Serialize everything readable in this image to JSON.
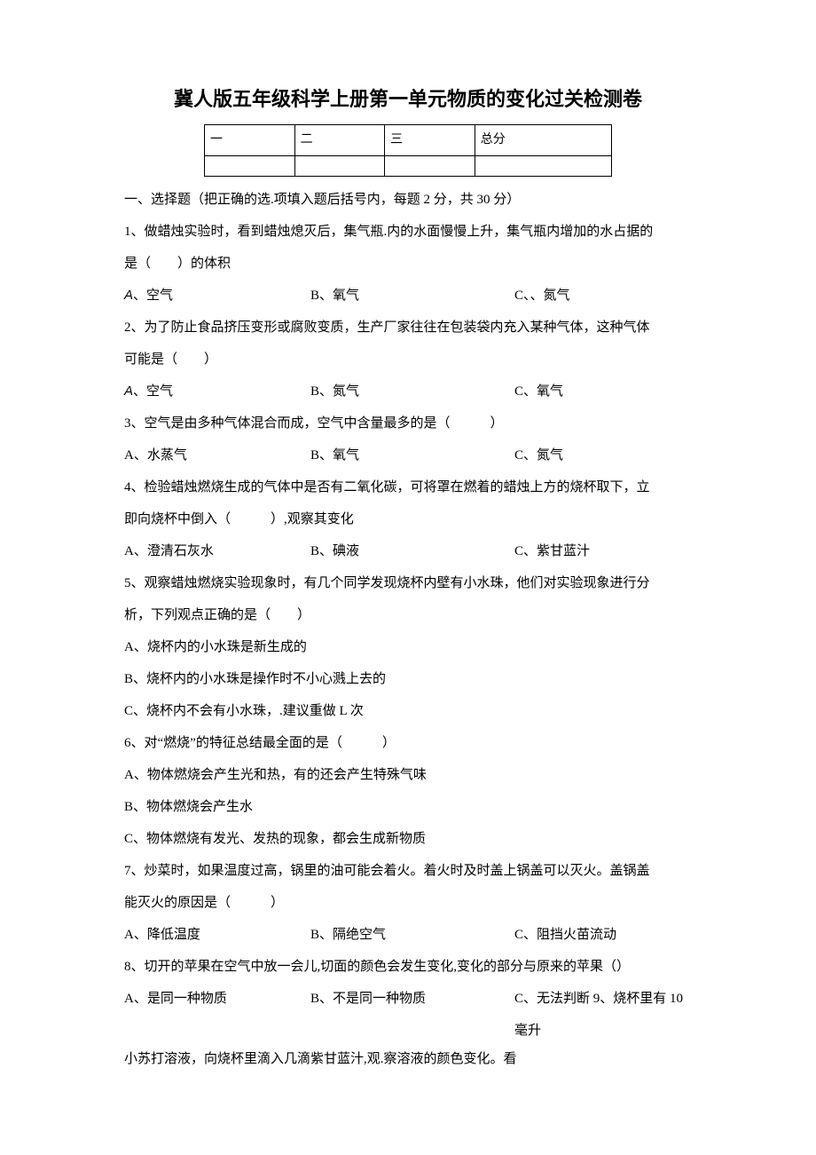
{
  "title": "冀人版五年级科学上册第一单元物质的变化过关检测卷",
  "score_table": {
    "headers": [
      "一",
      "二",
      "三",
      "总分"
    ]
  },
  "section1": {
    "heading": "一、选择题（把正确的选.项填入题后括号内，每题 2 分，共 30 分）",
    "questions": [
      {
        "stem1": "1、做蜡烛实验时，看到蜡烛熄灭后，集气瓶.内的水面慢慢上升，集气瓶内增加的水占据的",
        "stem2": "是（　　）的体积",
        "opts": [
          "A、空气",
          "B、氧气",
          "C、、氮气"
        ],
        "firstItalic": true
      },
      {
        "stem1": "2、为了防止食品挤压变形或腐败变质，生产厂家往往在包装袋内充入某种气体，这种气体",
        "stem2": "可能是（　　）",
        "opts": [
          "A、空气",
          "B、氮气",
          "C、氧气"
        ],
        "firstItalic": true
      },
      {
        "stem": "3、空气是由多种气体混合而成，空气中含量最多的是（　　　）",
        "opts": [
          "A、水蒸气",
          "B、氧气",
          "C、氮气"
        ]
      },
      {
        "stem1": "4、检验蜡烛燃烧生成的气体中是否有二氧化碳，可将罩在燃着的蜡烛上方的烧杯取下，立",
        "stem2": "即向烧杯中倒入（　　　）,观察其变化",
        "opts": [
          "A、澄清石灰水",
          "B、碘液",
          "C、紫甘蓝汁"
        ]
      },
      {
        "stem1": "5、观察蜡烛燃烧实验现象时，有几个同学发现烧杯内壁有小水珠，他们对实验现象进行分",
        "stem2": "析，下列观点正确的是（　　）",
        "optsVertical": [
          "A、烧杯内的小水珠是新生成的",
          "B、烧杯内的小水珠是操作时不小心溅上去的",
          "C、烧杯内不会有小水珠，.建议重做 L 次"
        ]
      },
      {
        "stem": "6、对“燃烧”的特征总结最全面的是（　　　）",
        "optsVertical": [
          "A、物体燃烧会产生光和热，有的还会产生特殊气味",
          "B、物体燃烧会产生水",
          "C、物体燃烧有发光、发热的现象，都会生成新物质"
        ]
      },
      {
        "stem1": "7、炒菜时，如果温度过高，锅里的油可能会着火。着火时及时盖上锅盖可以灭火。盖锅盖",
        "stem2": "能灭火的原因是（　　　）",
        "opts": [
          "A、降低温度",
          "B、隔绝空气",
          "C、阻挡火苗流动"
        ]
      },
      {
        "stem": "8、切开的苹果在空气中放一会儿,切面的颜色会发生变化,变化的部分与原来的苹果（）",
        "optsLastLine": {
          "a": "A、是同一种物质",
          "b": "B、不是同一种物质",
          "c": "C、无法判断 9、烧杯里有 10 毫升"
        },
        "tail": "小苏打溶液，向烧杯里滴入几滴紫甘蓝汁,观.察溶液的颜色变化。看"
      }
    ]
  }
}
